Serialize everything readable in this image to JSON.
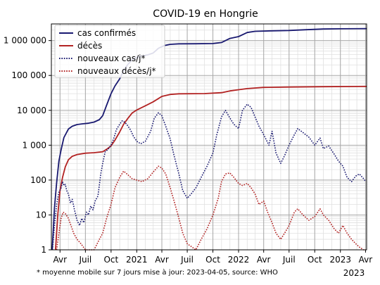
{
  "chart_data": {
    "type": "line",
    "title": "COVID-19 en Hongrie",
    "footnote": "* moyenne mobile sur 7 jours  mise à jour: 2023-04-05, source: WHO",
    "y_scale": "log",
    "ylim": [
      1,
      3000000
    ],
    "xlim": [
      "2020-03-01",
      "2023-04-05"
    ],
    "grid": true,
    "legend_position": "top-left",
    "y_ticks": [
      {
        "value": 1,
        "label": "1"
      },
      {
        "value": 10,
        "label": "10"
      },
      {
        "value": 100,
        "label": "100"
      },
      {
        "value": 1000,
        "label": "1 000"
      },
      {
        "value": 10000,
        "label": "10 000"
      },
      {
        "value": 100000,
        "label": "100 000"
      },
      {
        "value": 1000000,
        "label": "1 000 000"
      }
    ],
    "x_ticks": [
      {
        "date": "2020-04-01",
        "label": "Avr"
      },
      {
        "date": "2020-07-01",
        "label": "Juil"
      },
      {
        "date": "2020-10-01",
        "label": "Oct"
      },
      {
        "date": "2021-01-01",
        "label": "2021"
      },
      {
        "date": "2021-04-01",
        "label": "Avr"
      },
      {
        "date": "2021-07-01",
        "label": "Juil"
      },
      {
        "date": "2021-10-01",
        "label": "Oct"
      },
      {
        "date": "2022-01-01",
        "label": "2022"
      },
      {
        "date": "2022-04-01",
        "label": "Avr"
      },
      {
        "date": "2022-07-01",
        "label": "Juil"
      },
      {
        "date": "2022-10-01",
        "label": "Oct"
      },
      {
        "date": "2023-01-01",
        "label": "2023"
      },
      {
        "date": "2023-04-01",
        "label": "Avr"
      }
    ],
    "x_secondary_label": "2023",
    "series": [
      {
        "name": "cas confirmés",
        "color": "#191970",
        "style": "solid",
        "points": [
          [
            "2020-03-04",
            1
          ],
          [
            "2020-03-12",
            16
          ],
          [
            "2020-03-20",
            85
          ],
          [
            "2020-03-28",
            350
          ],
          [
            "2020-04-05",
            750
          ],
          [
            "2020-04-15",
            1650
          ],
          [
            "2020-05-01",
            2900
          ],
          [
            "2020-05-15",
            3500
          ],
          [
            "2020-06-01",
            3900
          ],
          [
            "2020-06-20",
            4100
          ],
          [
            "2020-07-10",
            4250
          ],
          [
            "2020-08-01",
            4600
          ],
          [
            "2020-08-20",
            5400
          ],
          [
            "2020-09-01",
            7000
          ],
          [
            "2020-09-15",
            14000
          ],
          [
            "2020-10-01",
            30000
          ],
          [
            "2020-10-15",
            50000
          ],
          [
            "2020-11-01",
            80000
          ],
          [
            "2020-11-15",
            140000
          ],
          [
            "2020-12-01",
            210000
          ],
          [
            "2020-12-15",
            280000
          ],
          [
            "2021-01-01",
            330000
          ],
          [
            "2021-01-20",
            360000
          ],
          [
            "2021-02-10",
            390000
          ],
          [
            "2021-03-01",
            440000
          ],
          [
            "2021-03-20",
            600000
          ],
          [
            "2021-04-10",
            720000
          ],
          [
            "2021-05-01",
            780000
          ],
          [
            "2021-06-01",
            805000
          ],
          [
            "2021-08-01",
            810000
          ],
          [
            "2021-10-01",
            820000
          ],
          [
            "2021-11-01",
            880000
          ],
          [
            "2021-12-01",
            1150000
          ],
          [
            "2022-01-01",
            1300000
          ],
          [
            "2022-02-01",
            1700000
          ],
          [
            "2022-03-01",
            1840000
          ],
          [
            "2022-05-01",
            1900000
          ],
          [
            "2022-07-01",
            1950000
          ],
          [
            "2022-09-01",
            2050000
          ],
          [
            "2022-11-01",
            2150000
          ],
          [
            "2023-01-01",
            2180000
          ],
          [
            "2023-04-05",
            2200000
          ]
        ]
      },
      {
        "name": "décès",
        "color": "#b22222",
        "style": "solid",
        "points": [
          [
            "2020-03-16",
            1
          ],
          [
            "2020-03-24",
            10
          ],
          [
            "2020-04-01",
            50
          ],
          [
            "2020-04-10",
            120
          ],
          [
            "2020-04-20",
            240
          ],
          [
            "2020-05-01",
            380
          ],
          [
            "2020-05-15",
            480
          ],
          [
            "2020-06-01",
            540
          ],
          [
            "2020-07-01",
            590
          ],
          [
            "2020-08-01",
            610
          ],
          [
            "2020-09-01",
            650
          ],
          [
            "2020-09-15",
            760
          ],
          [
            "2020-10-01",
            950
          ],
          [
            "2020-10-15",
            1400
          ],
          [
            "2020-11-01",
            2400
          ],
          [
            "2020-11-15",
            4000
          ],
          [
            "2020-12-01",
            6000
          ],
          [
            "2020-12-15",
            8300
          ],
          [
            "2021-01-01",
            10200
          ],
          [
            "2021-02-01",
            13500
          ],
          [
            "2021-03-01",
            17500
          ],
          [
            "2021-04-01",
            25000
          ],
          [
            "2021-05-01",
            28500
          ],
          [
            "2021-06-01",
            29800
          ],
          [
            "2021-09-01",
            30100
          ],
          [
            "2021-11-01",
            32000
          ],
          [
            "2021-12-01",
            36000
          ],
          [
            "2022-01-01",
            39000
          ],
          [
            "2022-02-01",
            42000
          ],
          [
            "2022-04-01",
            45500
          ],
          [
            "2022-07-01",
            46500
          ],
          [
            "2022-11-01",
            47500
          ],
          [
            "2023-04-05",
            48500
          ]
        ]
      },
      {
        "name": "nouveaux cas/j*",
        "color": "#191970",
        "style": "dotted",
        "points": [
          [
            "2020-03-05",
            1
          ],
          [
            "2020-03-12",
            5
          ],
          [
            "2020-03-20",
            20
          ],
          [
            "2020-03-28",
            45
          ],
          [
            "2020-04-05",
            60
          ],
          [
            "2020-04-10",
            90
          ],
          [
            "2020-04-15",
            70
          ],
          [
            "2020-04-20",
            75
          ],
          [
            "2020-04-25",
            50
          ],
          [
            "2020-05-01",
            40
          ],
          [
            "2020-05-08",
            22
          ],
          [
            "2020-05-15",
            28
          ],
          [
            "2020-05-22",
            15
          ],
          [
            "2020-06-01",
            7
          ],
          [
            "2020-06-10",
            5
          ],
          [
            "2020-06-18",
            8
          ],
          [
            "2020-06-25",
            6
          ],
          [
            "2020-07-05",
            12
          ],
          [
            "2020-07-12",
            10
          ],
          [
            "2020-07-20",
            18
          ],
          [
            "2020-07-28",
            14
          ],
          [
            "2020-08-05",
            25
          ],
          [
            "2020-08-15",
            35
          ],
          [
            "2020-08-25",
            150
          ],
          [
            "2020-09-01",
            300
          ],
          [
            "2020-09-10",
            650
          ],
          [
            "2020-09-20",
            750
          ],
          [
            "2020-10-01",
            1000
          ],
          [
            "2020-10-10",
            1500
          ],
          [
            "2020-10-20",
            2800
          ],
          [
            "2020-11-01",
            4000
          ],
          [
            "2020-11-10",
            5000
          ],
          [
            "2020-11-20",
            4500
          ],
          [
            "2020-12-01",
            3500
          ],
          [
            "2020-12-10",
            2700
          ],
          [
            "2020-12-20",
            1800
          ],
          [
            "2021-01-01",
            1300
          ],
          [
            "2021-01-15",
            1100
          ],
          [
            "2021-02-01",
            1300
          ],
          [
            "2021-02-20",
            2500
          ],
          [
            "2021-03-05",
            6000
          ],
          [
            "2021-03-20",
            8500
          ],
          [
            "2021-04-01",
            7000
          ],
          [
            "2021-04-15",
            3500
          ],
          [
            "2021-05-01",
            1500
          ],
          [
            "2021-05-15",
            500
          ],
          [
            "2021-06-01",
            150
          ],
          [
            "2021-06-15",
            50
          ],
          [
            "2021-07-01",
            30
          ],
          [
            "2021-07-15",
            40
          ],
          [
            "2021-08-01",
            60
          ],
          [
            "2021-08-20",
            120
          ],
          [
            "2021-09-10",
            250
          ],
          [
            "2021-10-01",
            600
          ],
          [
            "2021-10-15",
            2000
          ],
          [
            "2021-11-01",
            6500
          ],
          [
            "2021-11-15",
            10000
          ],
          [
            "2021-12-01",
            6000
          ],
          [
            "2021-12-15",
            4000
          ],
          [
            "2022-01-01",
            3000
          ],
          [
            "2022-01-15",
            10000
          ],
          [
            "2022-02-01",
            15000
          ],
          [
            "2022-02-15",
            12000
          ],
          [
            "2022-03-01",
            6500
          ],
          [
            "2022-03-15",
            3500
          ],
          [
            "2022-04-01",
            2000
          ],
          [
            "2022-04-20",
            1000
          ],
          [
            "2022-05-01",
            2500
          ],
          [
            "2022-05-15",
            600
          ],
          [
            "2022-06-01",
            300
          ],
          [
            "2022-06-15",
            500
          ],
          [
            "2022-07-01",
            1000
          ],
          [
            "2022-07-20",
            2000
          ],
          [
            "2022-08-01",
            3000
          ],
          [
            "2022-08-20",
            2300
          ],
          [
            "2022-09-10",
            1700
          ],
          [
            "2022-10-01",
            1000
          ],
          [
            "2022-10-20",
            1600
          ],
          [
            "2022-11-01",
            800
          ],
          [
            "2022-11-20",
            950
          ],
          [
            "2022-12-10",
            550
          ],
          [
            "2022-12-25",
            350
          ],
          [
            "2023-01-10",
            250
          ],
          [
            "2023-01-25",
            120
          ],
          [
            "2023-02-10",
            90
          ],
          [
            "2023-02-25",
            130
          ],
          [
            "2023-03-10",
            150
          ],
          [
            "2023-03-25",
            110
          ],
          [
            "2023-04-02",
            90
          ]
        ]
      },
      {
        "name": "nouveaux décès/j*",
        "color": "#b22222",
        "style": "dotted",
        "points": [
          [
            "2020-03-20",
            1
          ],
          [
            "2020-03-28",
            3
          ],
          [
            "2020-04-05",
            8
          ],
          [
            "2020-04-12",
            12
          ],
          [
            "2020-04-20",
            11
          ],
          [
            "2020-05-01",
            8
          ],
          [
            "2020-05-10",
            5
          ],
          [
            "2020-05-20",
            3
          ],
          [
            "2020-06-01",
            2
          ],
          [
            "2020-06-15",
            1.5
          ],
          [
            "2020-07-01",
            1
          ],
          [
            "2020-08-01",
            1
          ],
          [
            "2020-08-20",
            2
          ],
          [
            "2020-09-01",
            3
          ],
          [
            "2020-09-15",
            8
          ],
          [
            "2020-10-01",
            20
          ],
          [
            "2020-10-15",
            60
          ],
          [
            "2020-11-01",
            120
          ],
          [
            "2020-11-15",
            180
          ],
          [
            "2020-12-01",
            140
          ],
          [
            "2020-12-15",
            110
          ],
          [
            "2021-01-01",
            100
          ],
          [
            "2021-01-20",
            90
          ],
          [
            "2021-02-10",
            110
          ],
          [
            "2021-03-01",
            170
          ],
          [
            "2021-03-20",
            250
          ],
          [
            "2021-04-01",
            220
          ],
          [
            "2021-04-15",
            150
          ],
          [
            "2021-05-01",
            60
          ],
          [
            "2021-05-15",
            25
          ],
          [
            "2021-06-01",
            8
          ],
          [
            "2021-06-15",
            3
          ],
          [
            "2021-07-01",
            1.5
          ],
          [
            "2021-08-01",
            1
          ],
          [
            "2021-08-20",
            2
          ],
          [
            "2021-09-10",
            4
          ],
          [
            "2021-10-01",
            10
          ],
          [
            "2021-10-20",
            30
          ],
          [
            "2021-11-01",
            90
          ],
          [
            "2021-11-15",
            150
          ],
          [
            "2021-12-01",
            160
          ],
          [
            "2021-12-15",
            120
          ],
          [
            "2022-01-01",
            80
          ],
          [
            "2022-01-15",
            70
          ],
          [
            "2022-02-01",
            80
          ],
          [
            "2022-02-15",
            60
          ],
          [
            "2022-03-01",
            40
          ],
          [
            "2022-03-15",
            20
          ],
          [
            "2022-04-01",
            25
          ],
          [
            "2022-04-15",
            12
          ],
          [
            "2022-05-01",
            6
          ],
          [
            "2022-05-15",
            3
          ],
          [
            "2022-06-01",
            2
          ],
          [
            "2022-06-15",
            3
          ],
          [
            "2022-07-01",
            5
          ],
          [
            "2022-07-20",
            12
          ],
          [
            "2022-08-01",
            15
          ],
          [
            "2022-08-20",
            10
          ],
          [
            "2022-09-10",
            7
          ],
          [
            "2022-10-01",
            9
          ],
          [
            "2022-10-20",
            15
          ],
          [
            "2022-11-01",
            10
          ],
          [
            "2022-11-20",
            7
          ],
          [
            "2022-12-10",
            4
          ],
          [
            "2022-12-25",
            3
          ],
          [
            "2023-01-10",
            5
          ],
          [
            "2023-01-25",
            3
          ],
          [
            "2023-02-10",
            2
          ],
          [
            "2023-02-25",
            1.5
          ],
          [
            "2023-03-10",
            1.2
          ],
          [
            "2023-03-25",
            1
          ],
          [
            "2023-04-02",
            1
          ]
        ]
      }
    ]
  }
}
